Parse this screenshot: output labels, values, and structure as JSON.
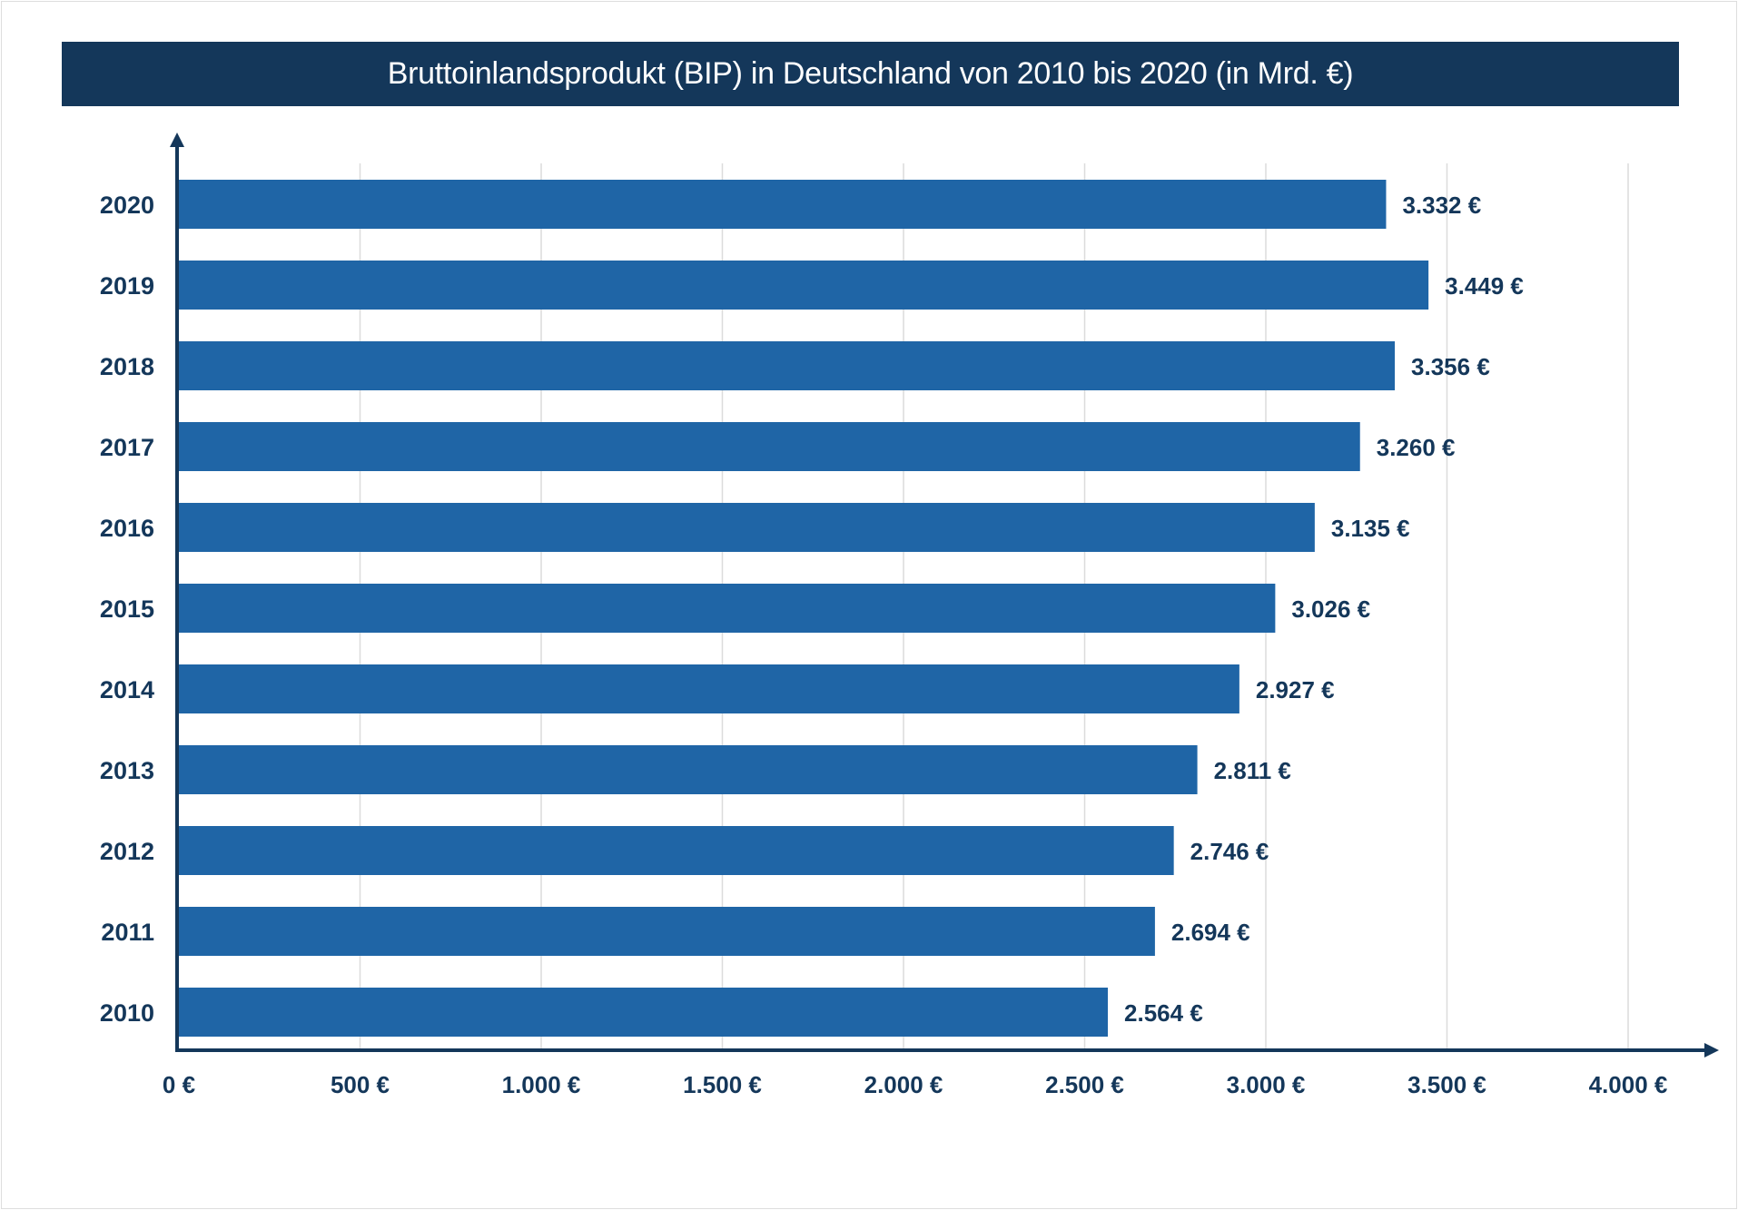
{
  "title": "Bruttoinlandsprodukt (BIP) in Deutschland von 2010 bis 2020 (in Mrd. €)",
  "colors": {
    "banner": "#14375a",
    "bar": "#1f65a6",
    "axis": "#14375a",
    "grid": "#dcdcdc",
    "text": "#14375a"
  },
  "chart_data": {
    "type": "bar",
    "orientation": "horizontal",
    "title": "Bruttoinlandsprodukt (BIP) in Deutschland von 2010 bis 2020 (in Mrd. €)",
    "categories": [
      "2020",
      "2019",
      "2018",
      "2017",
      "2016",
      "2015",
      "2014",
      "2013",
      "2012",
      "2011",
      "2010"
    ],
    "values": [
      3332,
      3449,
      3356,
      3260,
      3135,
      3026,
      2927,
      2811,
      2746,
      2694,
      2564
    ],
    "value_labels": [
      "3.332 €",
      "3.449 €",
      "3.356 €",
      "3.260 €",
      "3.135 €",
      "3.026 €",
      "2.927 €",
      "2.811 €",
      "2.746 €",
      "2.694 €",
      "2.564 €"
    ],
    "xlim": [
      0,
      4000
    ],
    "xticks": [
      0,
      500,
      1000,
      1500,
      2000,
      2500,
      3000,
      3500,
      4000
    ],
    "xtick_labels": [
      "0 €",
      "500 €",
      "1.000 €",
      "1.500 €",
      "2.000 €",
      "2.500 €",
      "3.000 €",
      "3.500 €",
      "4.000 €"
    ],
    "xlabel": "",
    "ylabel": "",
    "grid": "vertical",
    "legend": "none"
  }
}
